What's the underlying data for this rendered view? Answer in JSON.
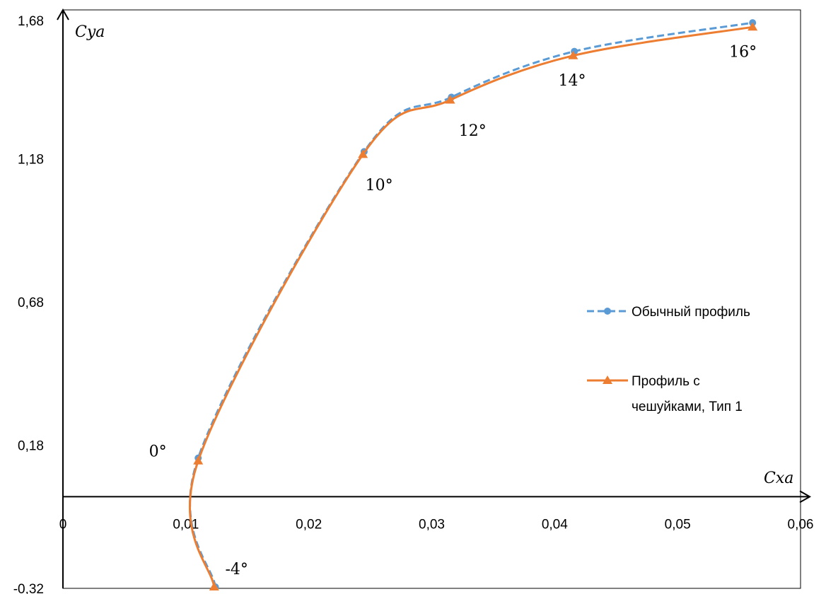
{
  "chart_data": {
    "type": "line",
    "title": "",
    "xlabel": "Cxa",
    "ylabel": "Cya",
    "xlim": [
      0,
      0.06
    ],
    "ylim": [
      -0.32,
      1.68
    ],
    "x_ticks": [
      "0",
      "0,01",
      "0,02",
      "0,03",
      "0,04",
      "0,05",
      "0,06"
    ],
    "y_ticks": [
      "1,68",
      "1,18",
      "0,68",
      "0,18",
      "-0,32"
    ],
    "grid": false,
    "legend_position": "right",
    "series": [
      {
        "name": "Обычный профиль",
        "color": "#5B9BD5",
        "line_style": "dashed",
        "marker": "circle",
        "x": [
          0.0124,
          0.011,
          0.0245,
          0.0316,
          0.0416,
          0.0561
        ],
        "y": [
          -0.315,
          0.135,
          1.205,
          1.395,
          1.555,
          1.655
        ]
      },
      {
        "name": "Профиль с чешуйками, Тип 1",
        "name_lines": [
          "Профиль с",
          "чешуйками, Тип 1"
        ],
        "color": "#ED7D31",
        "line_style": "solid",
        "marker": "triangle",
        "x": [
          0.0123,
          0.011,
          0.0244,
          0.0315,
          0.0415,
          0.0561
        ],
        "y": [
          -0.315,
          0.125,
          1.195,
          1.385,
          1.54,
          1.64
        ]
      }
    ],
    "annotations": [
      {
        "text": "-4°",
        "x": 0.0132,
        "y": -0.27
      },
      {
        "text": "0°",
        "x": 0.007,
        "y": 0.14
      },
      {
        "text": "10°",
        "x": 0.0246,
        "y": 1.07
      },
      {
        "text": "12°",
        "x": 0.0322,
        "y": 1.26
      },
      {
        "text": "14°",
        "x": 0.0403,
        "y": 1.435
      },
      {
        "text": "16°",
        "x": 0.0542,
        "y": 1.535
      }
    ]
  }
}
